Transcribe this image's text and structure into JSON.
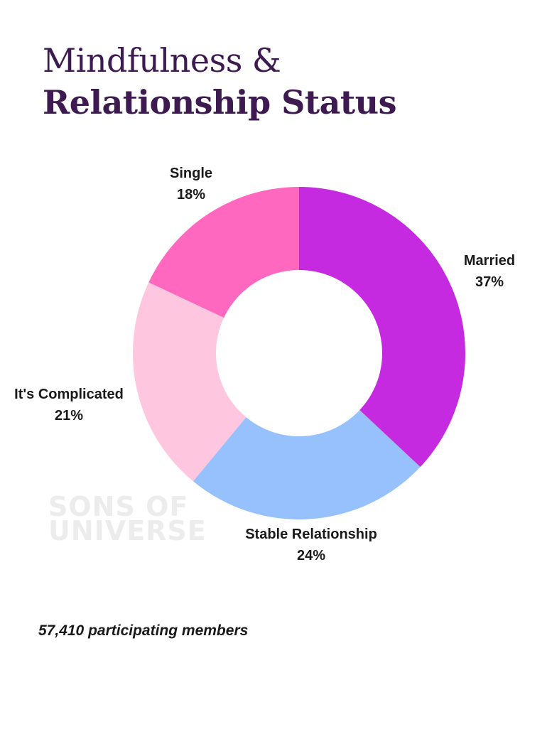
{
  "header": {
    "title_line1": "Mindfulness &",
    "title_line2": "Relationship Status"
  },
  "chart_data": {
    "type": "pie",
    "donut": true,
    "title": "Mindfulness & Relationship Status",
    "categories": [
      "Married",
      "Stable Relationship",
      "It's Complicated",
      "Single"
    ],
    "values": [
      37,
      24,
      21,
      18
    ],
    "unit": "%",
    "colors": [
      "#c52ae0",
      "#96c1fd",
      "#ffc6e0",
      "#ff68be"
    ],
    "start_angle_deg": 0,
    "direction": "clockwise",
    "legend": "direct labels outside slices"
  },
  "labels": [
    {
      "name": "Married",
      "value": "37%"
    },
    {
      "name": "Stable Relationship",
      "value": "24%"
    },
    {
      "name": "It's Complicated",
      "value": "21%"
    },
    {
      "name": "Single",
      "value": "18%"
    }
  ],
  "watermark": {
    "line1": "SONS OF",
    "line2": "UNIVERSE"
  },
  "footer": {
    "note": "57,410 participating members"
  }
}
